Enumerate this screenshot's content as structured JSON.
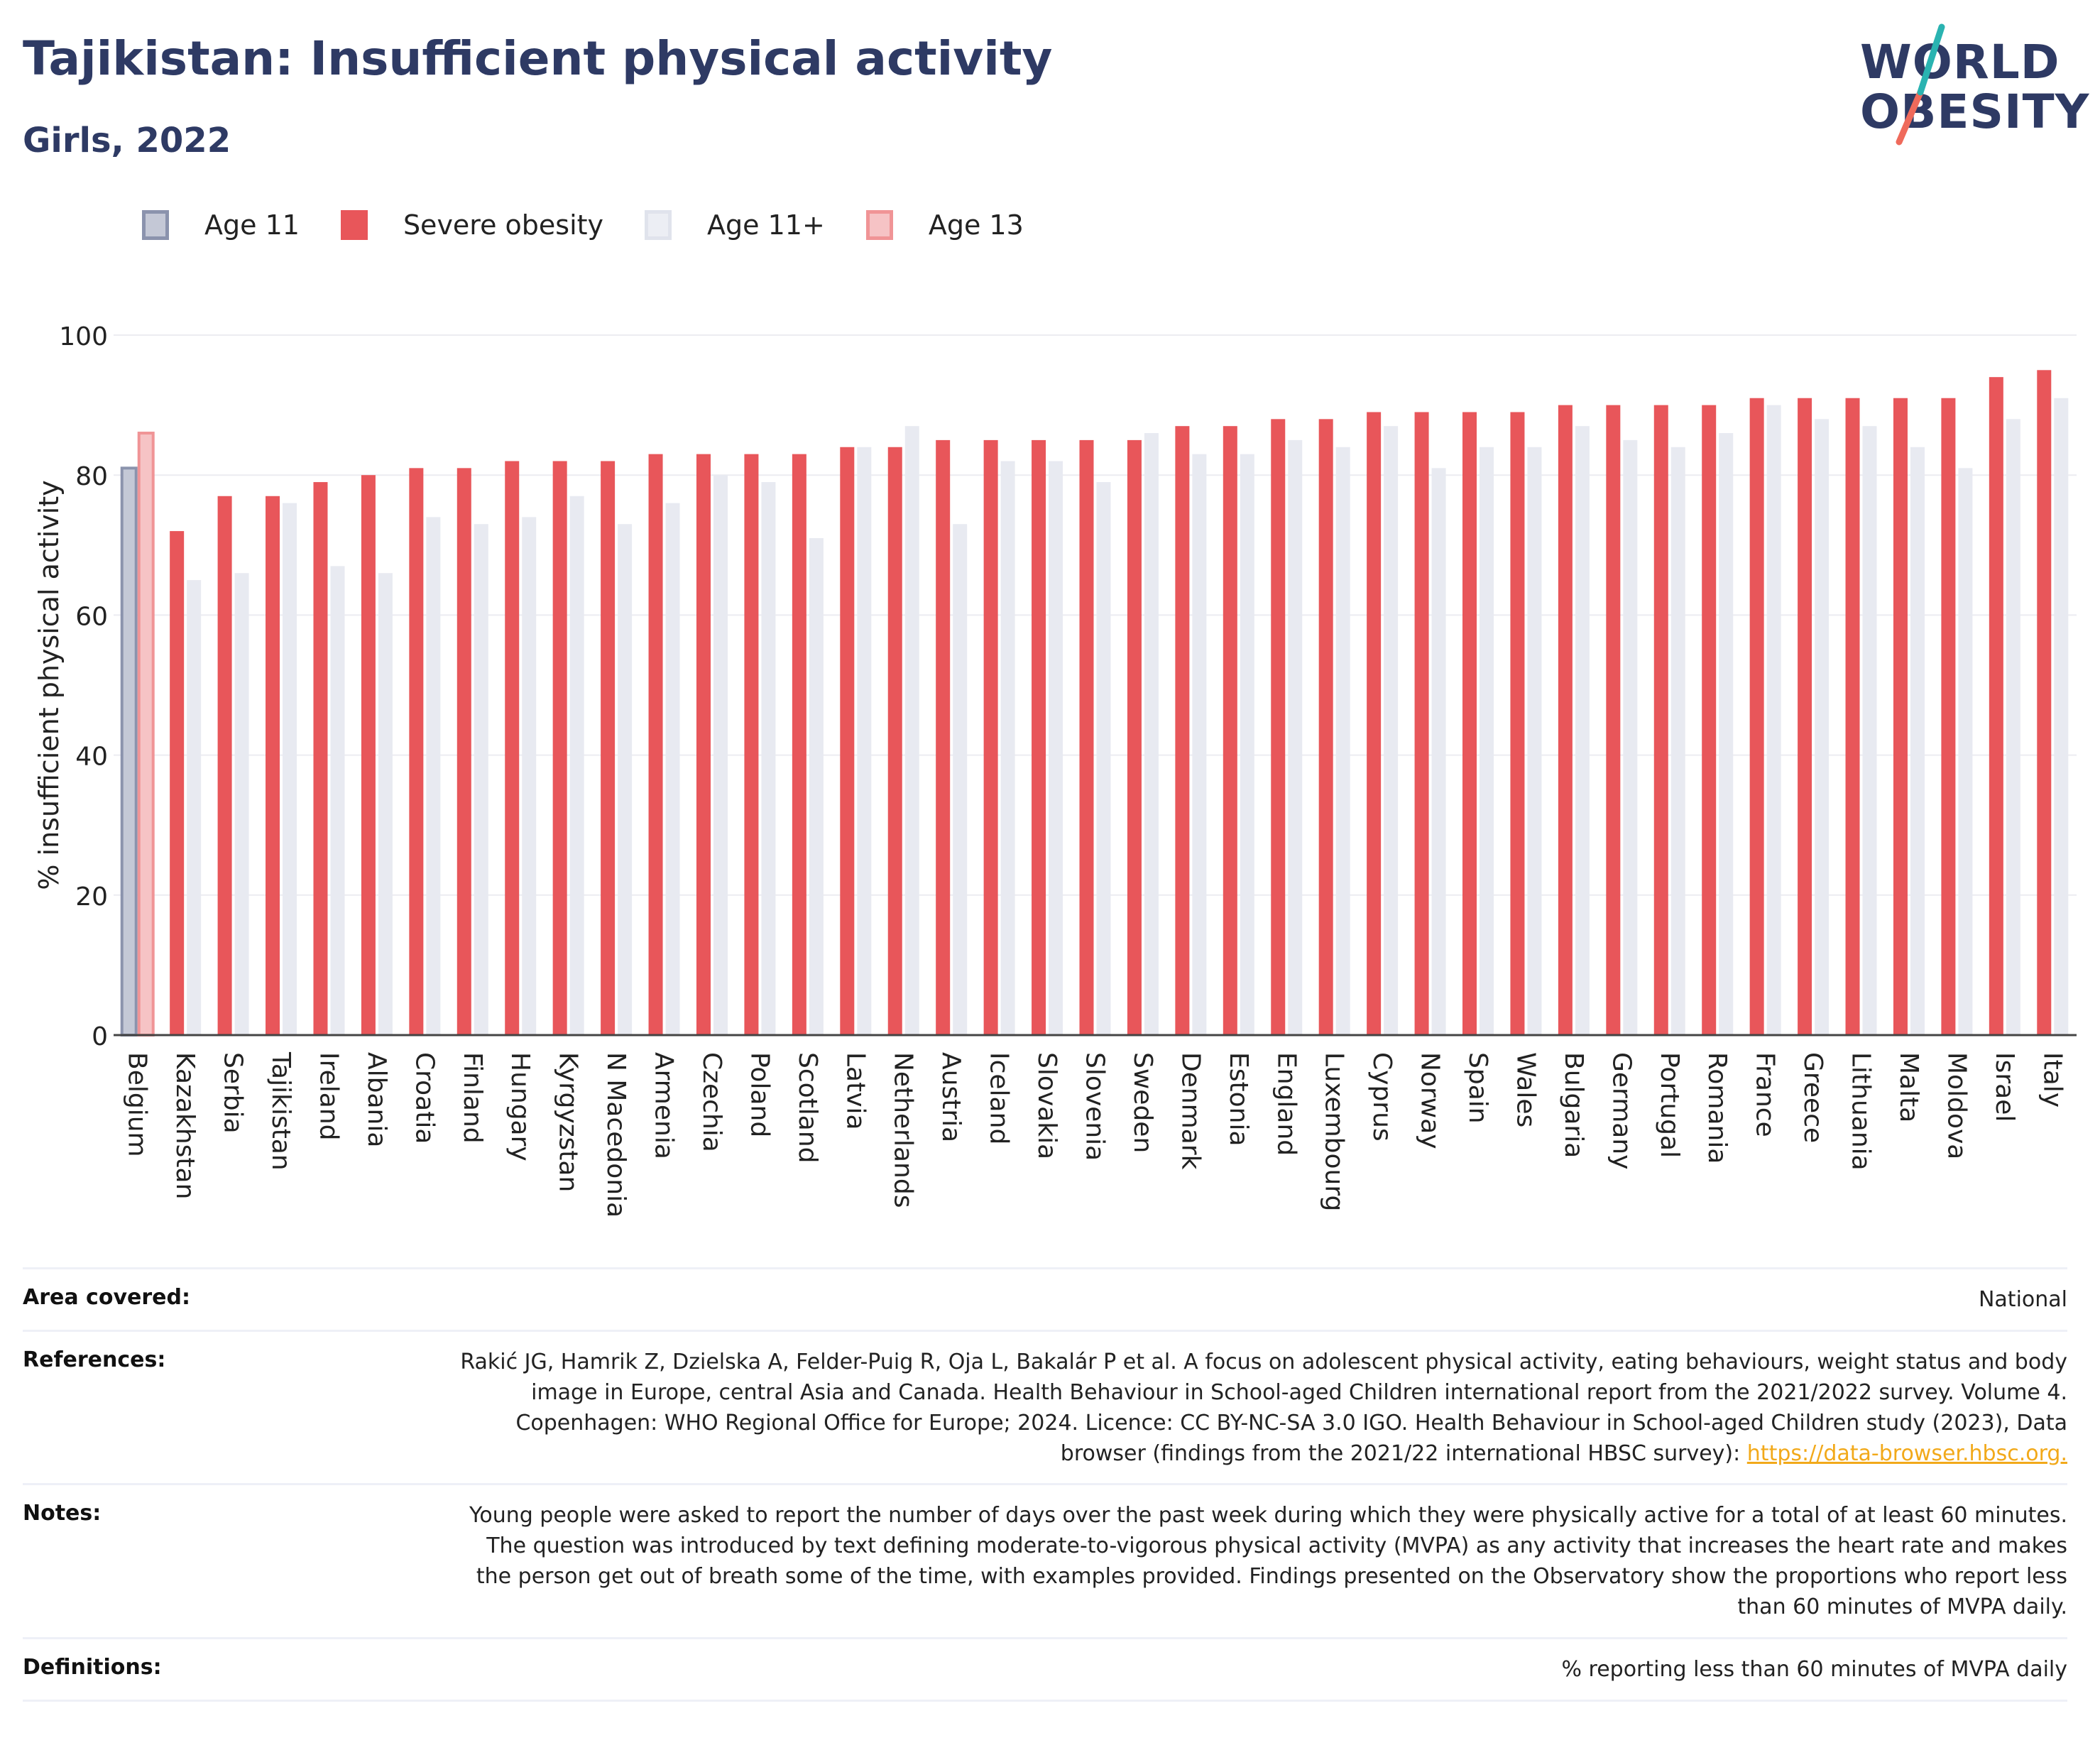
{
  "header": {
    "title": "Tajikistan: Insufficient physical activity",
    "subtitle": "Girls, 2022"
  },
  "logo": {
    "line1": "WORLD",
    "line2": "OBESITY"
  },
  "legend": [
    {
      "label": "Age 11",
      "fill": "#c4c8d6",
      "stroke": "#8b93ad"
    },
    {
      "label": "Severe obesity",
      "fill": "#e8565a",
      "stroke": "#e8565a"
    },
    {
      "label": "Age 11+",
      "fill": "#eceef4",
      "stroke": "#e0e3ec"
    },
    {
      "label": "Age 13",
      "fill": "#f6c3c5",
      "stroke": "#f09496"
    }
  ],
  "colors": {
    "title": "#2e3a64",
    "severe_obesity": "#e8565a",
    "age11plus": "#e8eaf1",
    "age11": "#c4c8d6",
    "age13": "#f6c3c5",
    "link": "#f2a91a"
  },
  "chart_data": {
    "type": "bar",
    "ylabel": "% insufficient physical activity",
    "ylim": [
      0,
      100
    ],
    "yticks": [
      0,
      20,
      40,
      60,
      80,
      100
    ],
    "grid": true,
    "legend_position": "top-left",
    "categories": [
      "Belgium",
      "Kazakhstan",
      "Serbia",
      "Tajikistan",
      "Ireland",
      "Albania",
      "Croatia",
      "Finland",
      "Hungary",
      "Kyrgyzstan",
      "N Macedonia",
      "Armenia",
      "Czechia",
      "Poland",
      "Scotland",
      "Latvia",
      "Netherlands",
      "Austria",
      "Iceland",
      "Slovakia",
      "Slovenia",
      "Sweden",
      "Denmark",
      "Estonia",
      "England",
      "Luxembourg",
      "Cyprus",
      "Norway",
      "Spain",
      "Wales",
      "Bulgaria",
      "Germany",
      "Portugal",
      "Romania",
      "France",
      "Greece",
      "Lithuania",
      "Malta",
      "Moldova",
      "Israel",
      "Italy"
    ],
    "series": [
      {
        "name": "Age 11",
        "values": [
          81,
          null,
          null,
          null,
          null,
          null,
          null,
          null,
          null,
          null,
          null,
          null,
          null,
          null,
          null,
          null,
          null,
          null,
          null,
          null,
          null,
          null,
          null,
          null,
          null,
          null,
          null,
          null,
          null,
          null,
          null,
          null,
          null,
          null,
          null,
          null,
          null,
          null,
          null,
          null,
          null
        ]
      },
      {
        "name": "Age 13",
        "values": [
          86,
          null,
          null,
          null,
          null,
          null,
          null,
          null,
          null,
          null,
          null,
          null,
          null,
          null,
          null,
          null,
          null,
          null,
          null,
          null,
          null,
          null,
          null,
          null,
          null,
          null,
          null,
          null,
          null,
          null,
          null,
          null,
          null,
          null,
          null,
          null,
          null,
          null,
          null,
          null,
          null
        ]
      },
      {
        "name": "Severe obesity",
        "values": [
          null,
          72,
          77,
          77,
          79,
          80,
          81,
          81,
          82,
          82,
          82,
          83,
          83,
          83,
          83,
          84,
          84,
          85,
          85,
          85,
          85,
          85,
          87,
          87,
          88,
          88,
          89,
          89,
          89,
          89,
          90,
          90,
          90,
          90,
          91,
          91,
          91,
          91,
          91,
          94,
          95
        ]
      },
      {
        "name": "Age 11+",
        "values": [
          null,
          65,
          66,
          76,
          67,
          66,
          74,
          73,
          74,
          77,
          73,
          76,
          80,
          79,
          71,
          84,
          87,
          73,
          82,
          82,
          79,
          86,
          83,
          83,
          85,
          84,
          87,
          81,
          84,
          84,
          87,
          85,
          84,
          86,
          90,
          88,
          87,
          84,
          81,
          88,
          91
        ]
      }
    ]
  },
  "info": [
    {
      "label": "Area covered:",
      "value": "National"
    },
    {
      "label": "References:",
      "value": "Rakić JG, Hamrik Z, Dzielska A, Felder-Puig R, Oja L, Bakalár P et al. A focus on adolescent physical activity, eating behaviours, weight status and body image in Europe, central Asia and Canada. Health Behaviour in School-aged Children international report from the 2021/2022 survey. Volume 4. Copenhagen: WHO Regional Office for Europe; 2024. Licence: CC BY-NC-SA 3.0 IGO. Health Behaviour in School-aged Children study (2023), Data browser (findings from the 2021/22 international HBSC survey): ",
      "link": "https://data-browser.hbsc.org."
    },
    {
      "label": "Notes:",
      "value": "Young people were asked to report the number of days over the past week during which they were physically active for a total of at least 60 minutes. The question was introduced by text defining moderate-to-vigorous physical activity (MVPA) as any activity that increases the heart rate and makes the person get out of breath some of the time, with examples provided. Findings presented on the Observatory show the proportions who report less than 60 minutes of MVPA daily."
    },
    {
      "label": "Definitions:",
      "value": "% reporting less than 60 minutes of MVPA daily"
    }
  ]
}
